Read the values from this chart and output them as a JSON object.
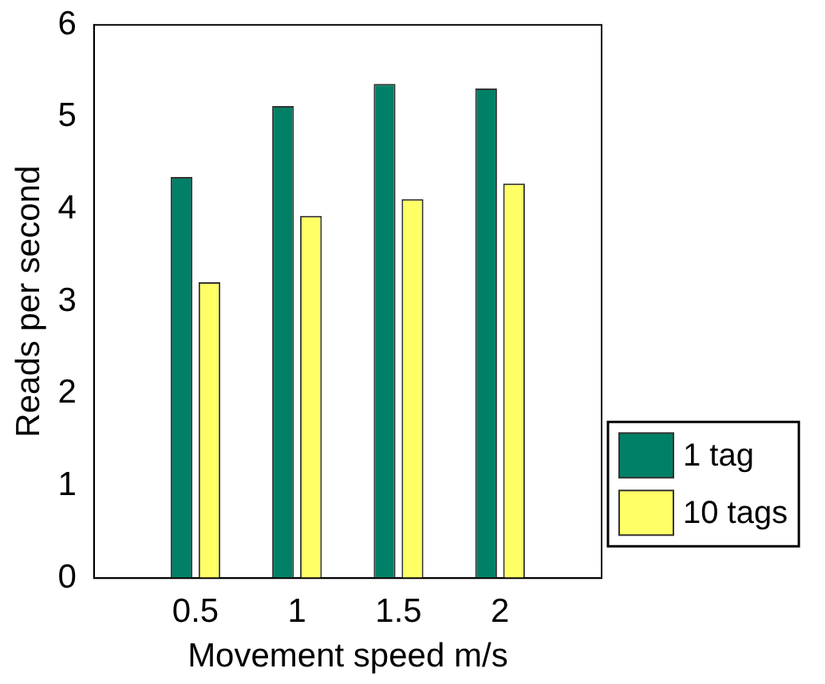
{
  "chart_data": {
    "type": "bar",
    "xlabel": "Movement speed m/s",
    "ylabel": "Reads per second",
    "x": [
      0.5,
      1,
      1.5,
      2
    ],
    "series": [
      {
        "name": "1 tag",
        "color": "#008066",
        "values": [
          4.35,
          5.12,
          5.36,
          5.31
        ]
      },
      {
        "name": "10 tags",
        "color": "#ffff66",
        "values": [
          3.21,
          3.93,
          4.11,
          4.28
        ]
      }
    ],
    "xlim": [
      0,
      2.5
    ],
    "xticks": [
      0.5,
      1,
      1.5,
      2
    ],
    "ylim": [
      0,
      6
    ],
    "yticks": [
      0,
      1,
      2,
      3,
      4,
      5,
      6
    ],
    "grid": false,
    "legend": "bottom right"
  }
}
